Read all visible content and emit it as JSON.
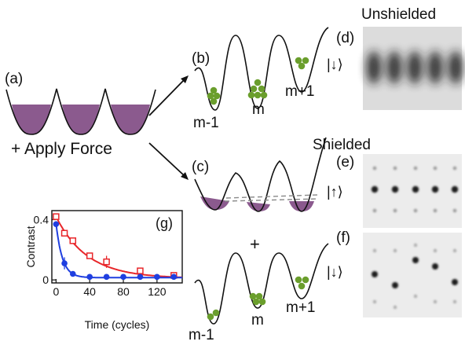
{
  "labels": {
    "a": "(a)",
    "b": "(b)",
    "c": "(c)",
    "d": "(d)",
    "e": "(e)",
    "f": "(f)",
    "g": "(g)"
  },
  "apply_force": "+ Apply Force",
  "unshielded_title": "Unshielded",
  "shielded_title": "Shielded",
  "plus_sign": "+",
  "states": {
    "down_d": "|↓⟩",
    "up_e": "|↑⟩",
    "down_f": "|↓⟩"
  },
  "site_labels": {
    "b": [
      "m-1",
      "m",
      "m+1"
    ],
    "f": [
      "m-1",
      "m",
      "m+1"
    ]
  },
  "colors": {
    "fill_purple": "#8b5a8e",
    "atom_green": "#6a9e2c",
    "red_series": "#e8262a",
    "blue_series": "#1f3fe0"
  },
  "chart_data": {
    "type": "scatter",
    "xlabel": "Time (cycles)",
    "ylabel": "Contrast",
    "xlim": [
      -5,
      150
    ],
    "ylim": [
      -0.02,
      0.46
    ],
    "x_ticks": [
      0,
      40,
      80,
      120
    ],
    "y_ticks": [
      0,
      0.4
    ],
    "x_tick_labels": [
      "0",
      "40",
      "80",
      "120"
    ],
    "y_tick_labels": [
      "0",
      "0.4"
    ],
    "series": [
      {
        "color": "#e8262a",
        "marker": "open-square",
        "x": [
          0,
          10,
          20,
          40,
          60,
          100,
          140
        ],
        "y": [
          0.42,
          0.31,
          0.26,
          0.16,
          0.12,
          0.06,
          0.03
        ],
        "yerr": [
          0.02,
          0.02,
          0.02,
          0.02,
          0.04,
          0.01,
          0.01
        ],
        "fit": {
          "a": 0.41,
          "tau": 37,
          "c": 0.01
        }
      },
      {
        "color": "#1f3fe0",
        "marker": "filled-circle",
        "x": [
          0,
          10,
          20,
          40,
          60,
          80,
          100,
          120,
          140
        ],
        "y": [
          0.37,
          0.11,
          0.04,
          0.02,
          0.02,
          0.02,
          0.02,
          0.02,
          0.02
        ],
        "yerr": [
          0.02,
          0.04,
          0.01,
          0.01,
          0.005,
          0.005,
          0.005,
          0.005,
          0.005
        ],
        "fit": {
          "a": 0.36,
          "tau": 7.5,
          "c": 0.015
        }
      }
    ]
  }
}
